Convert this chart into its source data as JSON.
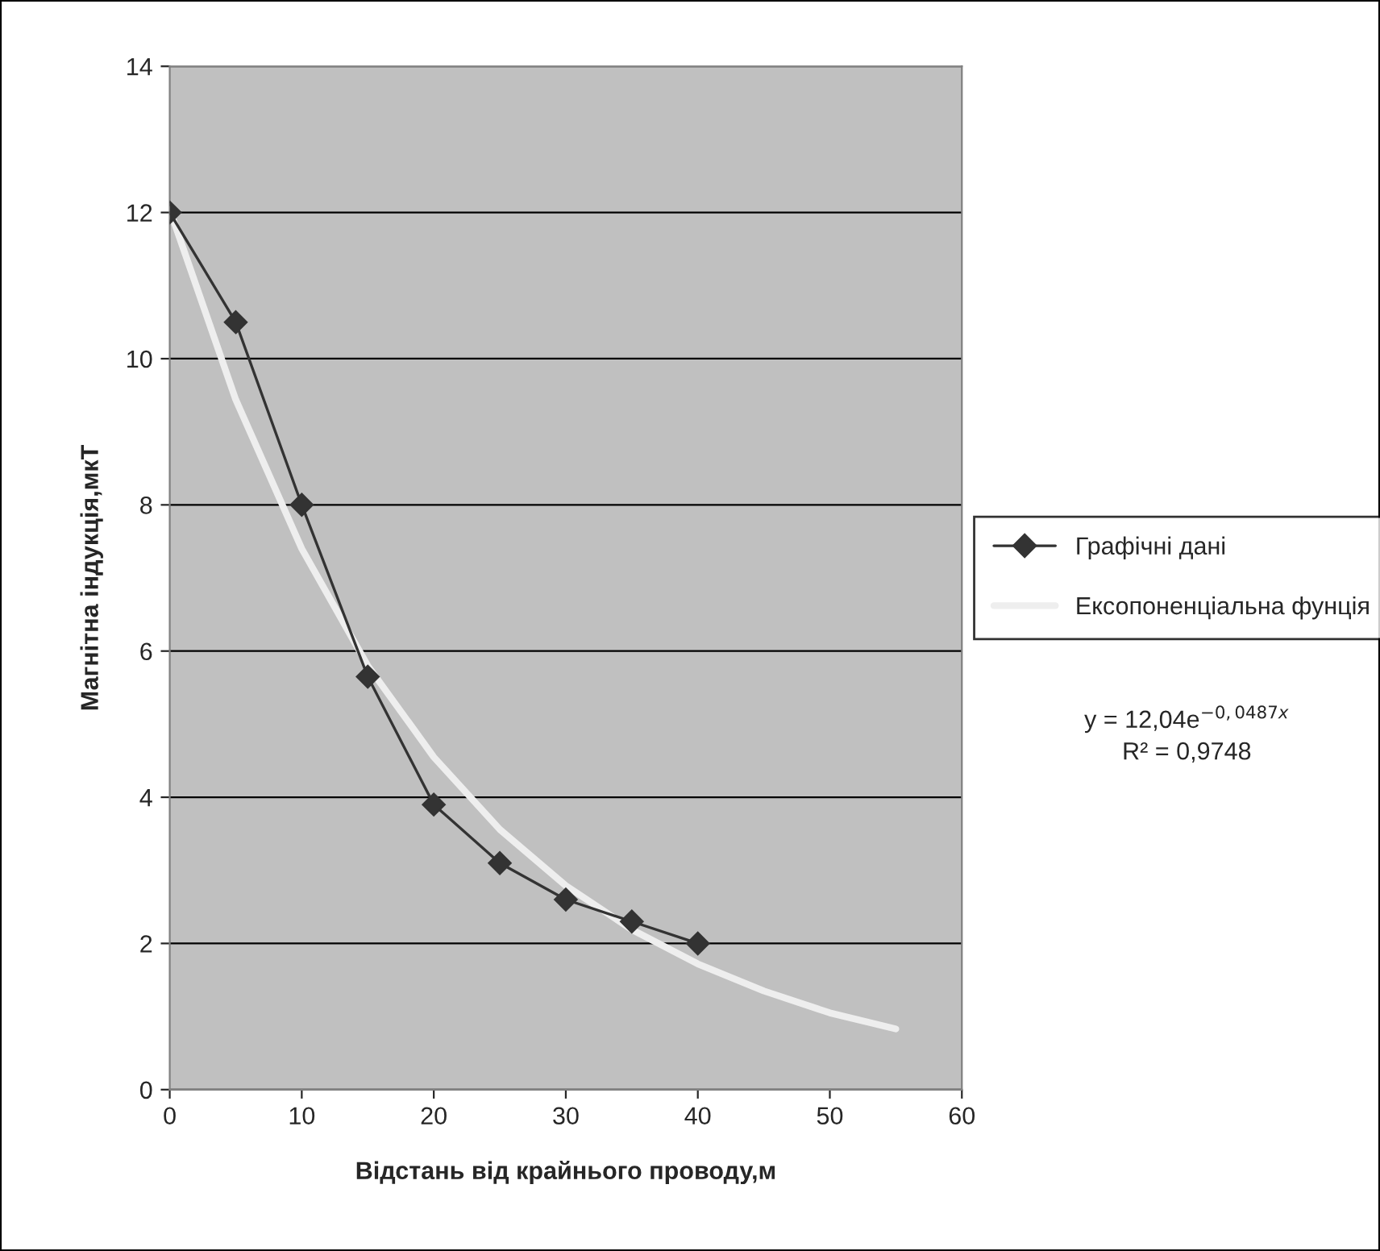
{
  "chart_data": {
    "type": "line",
    "xlabel": "Відстань від крайнього проводу,м",
    "ylabel": "Магнітна індукція,мкТ",
    "xlim": [
      0,
      60
    ],
    "xticks": [
      0,
      10,
      20,
      30,
      40,
      50,
      60
    ],
    "ylim": [
      0,
      14
    ],
    "yticks": [
      0,
      2,
      4,
      6,
      8,
      10,
      12,
      14
    ],
    "grid": "y",
    "legend": "right",
    "series": [
      {
        "name": "Графічні дані",
        "color": "#333333",
        "marker": "diamond",
        "x": [
          0,
          5,
          10,
          15,
          20,
          25,
          30,
          35,
          40
        ],
        "values": [
          12,
          10.5,
          8,
          5.65,
          3.9,
          3.1,
          2.6,
          2.3,
          2.0
        ]
      },
      {
        "name": "Ексопоненціальна фунція",
        "color": "#eeeeee",
        "marker": "none",
        "x": [
          0,
          5,
          10,
          15,
          20,
          25,
          30,
          35,
          40,
          45,
          50,
          55
        ],
        "values": [
          12.04,
          9.44,
          7.4,
          5.8,
          4.55,
          3.56,
          2.79,
          2.19,
          1.72,
          1.35,
          1.05,
          0.83
        ]
      }
    ],
    "annotations": [
      "y = 12,04e$^{−0,0487x}$",
      "R² = 0,9748"
    ]
  }
}
